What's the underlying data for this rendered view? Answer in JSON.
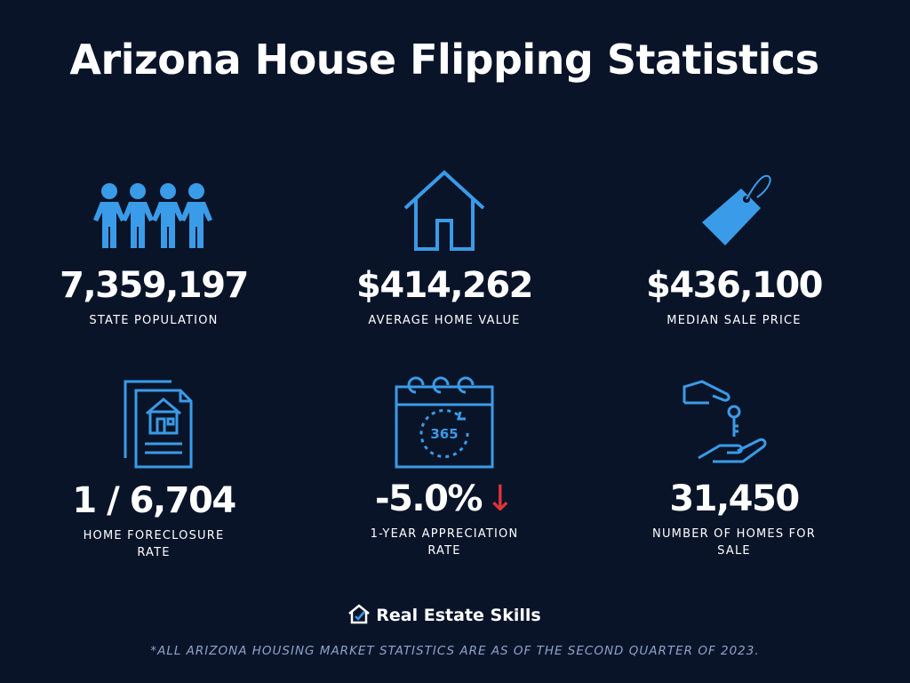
{
  "header": {
    "title": "Arizona House Flipping Statistics"
  },
  "stats": [
    {
      "value": "7,359,197",
      "label": "STATE POPULATION"
    },
    {
      "value": "$414,262",
      "label": "AVERAGE HOME VALUE"
    },
    {
      "value": "$436,100",
      "label": "MEDIAN SALE PRICE"
    },
    {
      "value": "1 / 6,704",
      "label": "HOME FORECLOSURE RATE"
    },
    {
      "value": "-5.0%",
      "label": "1-YEAR APPRECIATION RATE"
    },
    {
      "value": "31,450",
      "label": "NUMBER OF HOMES FOR SALE"
    }
  ],
  "brand": {
    "name": "Real Estate Skills"
  },
  "footnote": "*ALL ARIZONA HOUSING MARKET STATISTICS ARE AS OF THE SECOND QUARTER OF 2023."
}
